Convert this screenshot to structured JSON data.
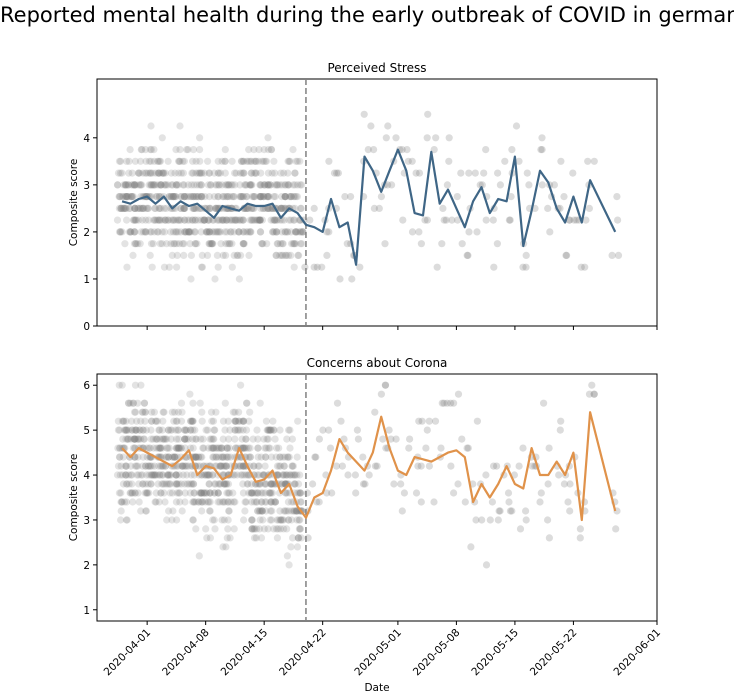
{
  "figure": {
    "title": "Reported mental health during the early outbreak of COVID in germany",
    "xlabel": "Date"
  },
  "chart_data": [
    {
      "type": "scatter",
      "title": "Perceived Stress",
      "ylabel": "Composite score",
      "xlim": [
        "2020-03-26",
        "2020-06-01"
      ],
      "ylim": [
        0,
        5.25
      ],
      "yticks": [
        0,
        1,
        2,
        3,
        4
      ],
      "xtick_labels": [],
      "grid": false,
      "vline": {
        "date": "2020-04-20",
        "style": "dashed",
        "color": "#808080"
      },
      "scatter_color": "#808080",
      "line_color": "#3f6686",
      "x": [
        "2020-03-29",
        "2020-03-30",
        "2020-03-31",
        "2020-04-01",
        "2020-04-02",
        "2020-04-03",
        "2020-04-04",
        "2020-04-05",
        "2020-04-06",
        "2020-04-07",
        "2020-04-08",
        "2020-04-09",
        "2020-04-10",
        "2020-04-11",
        "2020-04-12",
        "2020-04-13",
        "2020-04-14",
        "2020-04-15",
        "2020-04-16",
        "2020-04-17",
        "2020-04-18",
        "2020-04-19",
        "2020-04-20",
        "2020-04-21",
        "2020-04-22",
        "2020-04-23",
        "2020-04-24",
        "2020-04-25",
        "2020-04-26",
        "2020-04-27",
        "2020-04-28",
        "2020-04-29",
        "2020-04-30",
        "2020-05-01",
        "2020-05-02",
        "2020-05-03",
        "2020-05-04",
        "2020-05-05",
        "2020-05-06",
        "2020-05-07",
        "2020-05-08",
        "2020-05-09",
        "2020-05-10",
        "2020-05-11",
        "2020-05-12",
        "2020-05-13",
        "2020-05-14",
        "2020-05-15",
        "2020-05-16",
        "2020-05-17",
        "2020-05-18",
        "2020-05-19",
        "2020-05-20",
        "2020-05-21",
        "2020-05-22",
        "2020-05-23",
        "2020-05-24",
        "2020-05-27"
      ],
      "values": [
        2.65,
        2.6,
        2.7,
        2.75,
        2.6,
        2.75,
        2.5,
        2.65,
        2.55,
        2.6,
        2.45,
        2.3,
        2.55,
        2.5,
        2.45,
        2.6,
        2.55,
        2.55,
        2.6,
        2.3,
        2.5,
        2.4,
        2.15,
        2.1,
        2.0,
        2.7,
        2.1,
        2.2,
        1.3,
        3.6,
        3.3,
        2.85,
        3.3,
        3.75,
        3.3,
        2.4,
        2.35,
        3.7,
        2.6,
        2.9,
        2.5,
        2.1,
        2.65,
        2.95,
        2.4,
        2.7,
        2.65,
        3.6,
        1.7,
        2.45,
        3.3,
        3.05,
        2.5,
        2.2,
        2.75,
        2.2,
        3.1,
        2.0
      ]
    },
    {
      "type": "scatter",
      "title": "Concerns about Corona",
      "ylabel": "Composite score",
      "xlim": [
        "2020-03-26",
        "2020-06-01"
      ],
      "ylim": [
        0.75,
        6.25
      ],
      "yticks": [
        1,
        2,
        3,
        4,
        5,
        6
      ],
      "xtick_labels": [
        "2020-04-01",
        "2020-04-08",
        "2020-04-15",
        "2020-04-22",
        "2020-05-01",
        "2020-05-08",
        "2020-05-15",
        "2020-05-22",
        "2020-06-01"
      ],
      "grid": false,
      "vline": {
        "date": "2020-04-20",
        "style": "dashed",
        "color": "#808080"
      },
      "scatter_color": "#808080",
      "line_color": "#e0924a",
      "x": [
        "2020-03-29",
        "2020-03-30",
        "2020-03-31",
        "2020-04-01",
        "2020-04-02",
        "2020-04-03",
        "2020-04-04",
        "2020-04-05",
        "2020-04-06",
        "2020-04-07",
        "2020-04-08",
        "2020-04-09",
        "2020-04-10",
        "2020-04-11",
        "2020-04-12",
        "2020-04-13",
        "2020-04-14",
        "2020-04-15",
        "2020-04-16",
        "2020-04-17",
        "2020-04-18",
        "2020-04-19",
        "2020-04-20",
        "2020-04-21",
        "2020-04-22",
        "2020-04-23",
        "2020-04-24",
        "2020-04-25",
        "2020-04-26",
        "2020-04-27",
        "2020-04-28",
        "2020-04-29",
        "2020-04-30",
        "2020-05-01",
        "2020-05-02",
        "2020-05-03",
        "2020-05-04",
        "2020-05-05",
        "2020-05-06",
        "2020-05-07",
        "2020-05-08",
        "2020-05-09",
        "2020-05-10",
        "2020-05-11",
        "2020-05-12",
        "2020-05-13",
        "2020-05-14",
        "2020-05-15",
        "2020-05-16",
        "2020-05-17",
        "2020-05-18",
        "2020-05-19",
        "2020-05-20",
        "2020-05-21",
        "2020-05-22",
        "2020-05-23",
        "2020-05-24",
        "2020-05-27"
      ],
      "values": [
        4.6,
        4.4,
        4.6,
        4.5,
        4.4,
        4.3,
        4.2,
        4.35,
        4.55,
        4.0,
        4.2,
        4.15,
        3.9,
        4.0,
        4.6,
        4.2,
        3.85,
        3.9,
        4.1,
        3.6,
        3.8,
        3.3,
        3.05,
        3.5,
        3.6,
        4.1,
        4.8,
        4.5,
        4.3,
        4.1,
        4.5,
        5.3,
        4.6,
        4.1,
        4.0,
        4.4,
        4.35,
        4.3,
        4.4,
        4.5,
        4.55,
        4.4,
        3.4,
        3.8,
        3.5,
        3.8,
        4.2,
        3.8,
        3.7,
        4.6,
        4.0,
        4.0,
        4.3,
        4.0,
        4.5,
        3.0,
        5.4,
        3.2
      ]
    }
  ]
}
